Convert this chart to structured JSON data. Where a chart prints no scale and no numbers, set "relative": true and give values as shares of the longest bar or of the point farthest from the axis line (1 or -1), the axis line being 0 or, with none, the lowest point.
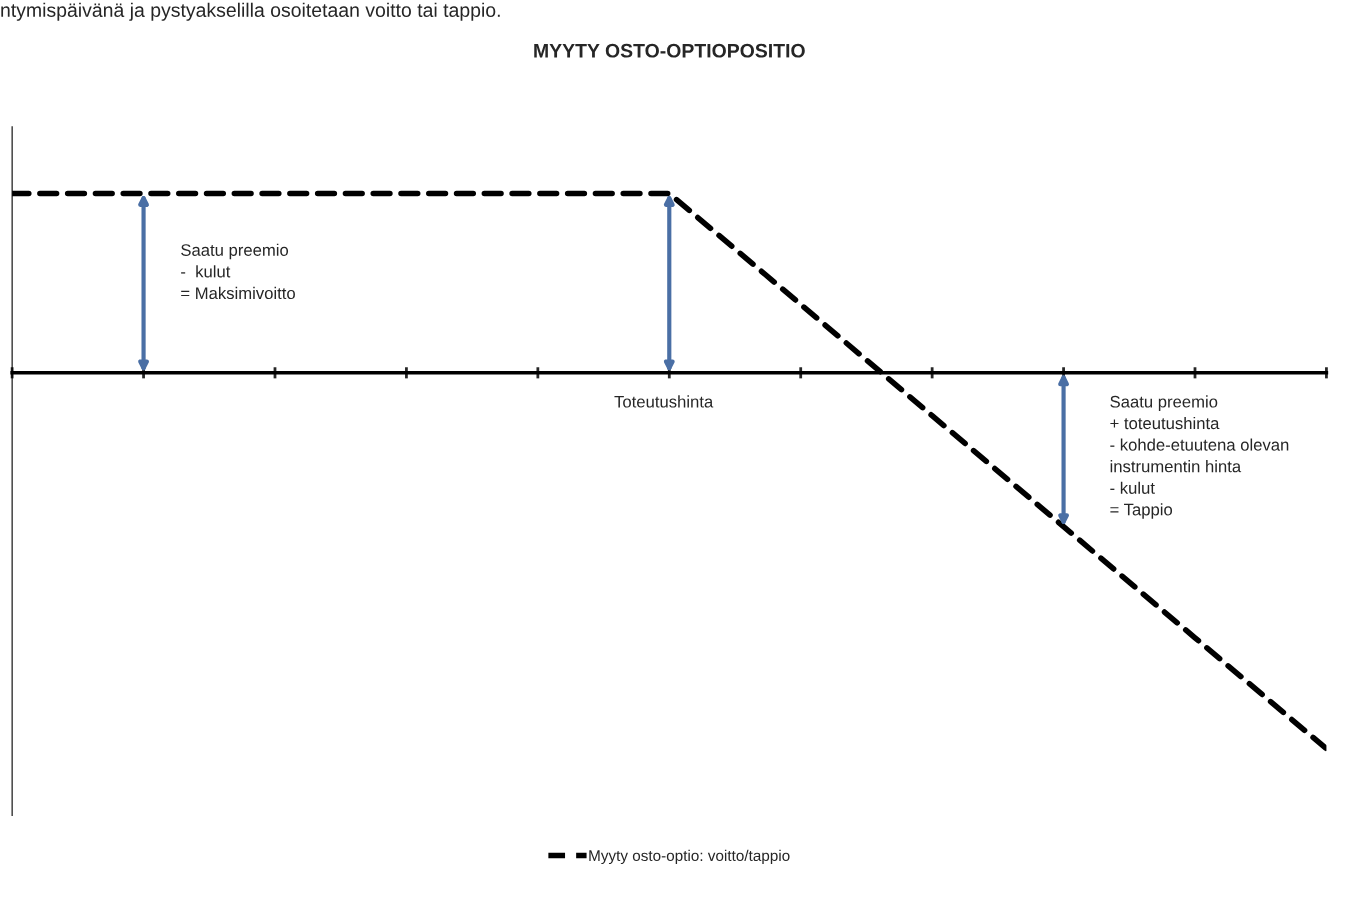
{
  "chart_data": {
    "type": "line",
    "title": "MYYTY OSTO-OPTIOPOSITIO",
    "relative": true,
    "categories": [
      null,
      null,
      null,
      null,
      null,
      null,
      null,
      null,
      null,
      null,
      null
    ],
    "series": [
      {
        "name": "Myyty osto-optio: voitto/tappio",
        "color": "#000000",
        "values": [
          0.477,
          0.477,
          0.477,
          0.477,
          0.477,
          0.477,
          0.182,
          -0.114,
          -0.409,
          -0.705,
          -1
        ]
      }
    ],
    "line_style": "dashed",
    "legend": "bottom",
    "grid": false,
    "annotations": [
      "ntymispäivänä ja pystyakselilla osoitetaan voitto tai tappio.",
      "Saatu preemio\n-  kulut\n= Maksimivoitto",
      "Toteutushinta",
      "Saatu preemio\n+ toteutushinta\n- kohde-etuutena olevan\ninstrumentin hinta\n- kulut\n= Tappio"
    ]
  }
}
